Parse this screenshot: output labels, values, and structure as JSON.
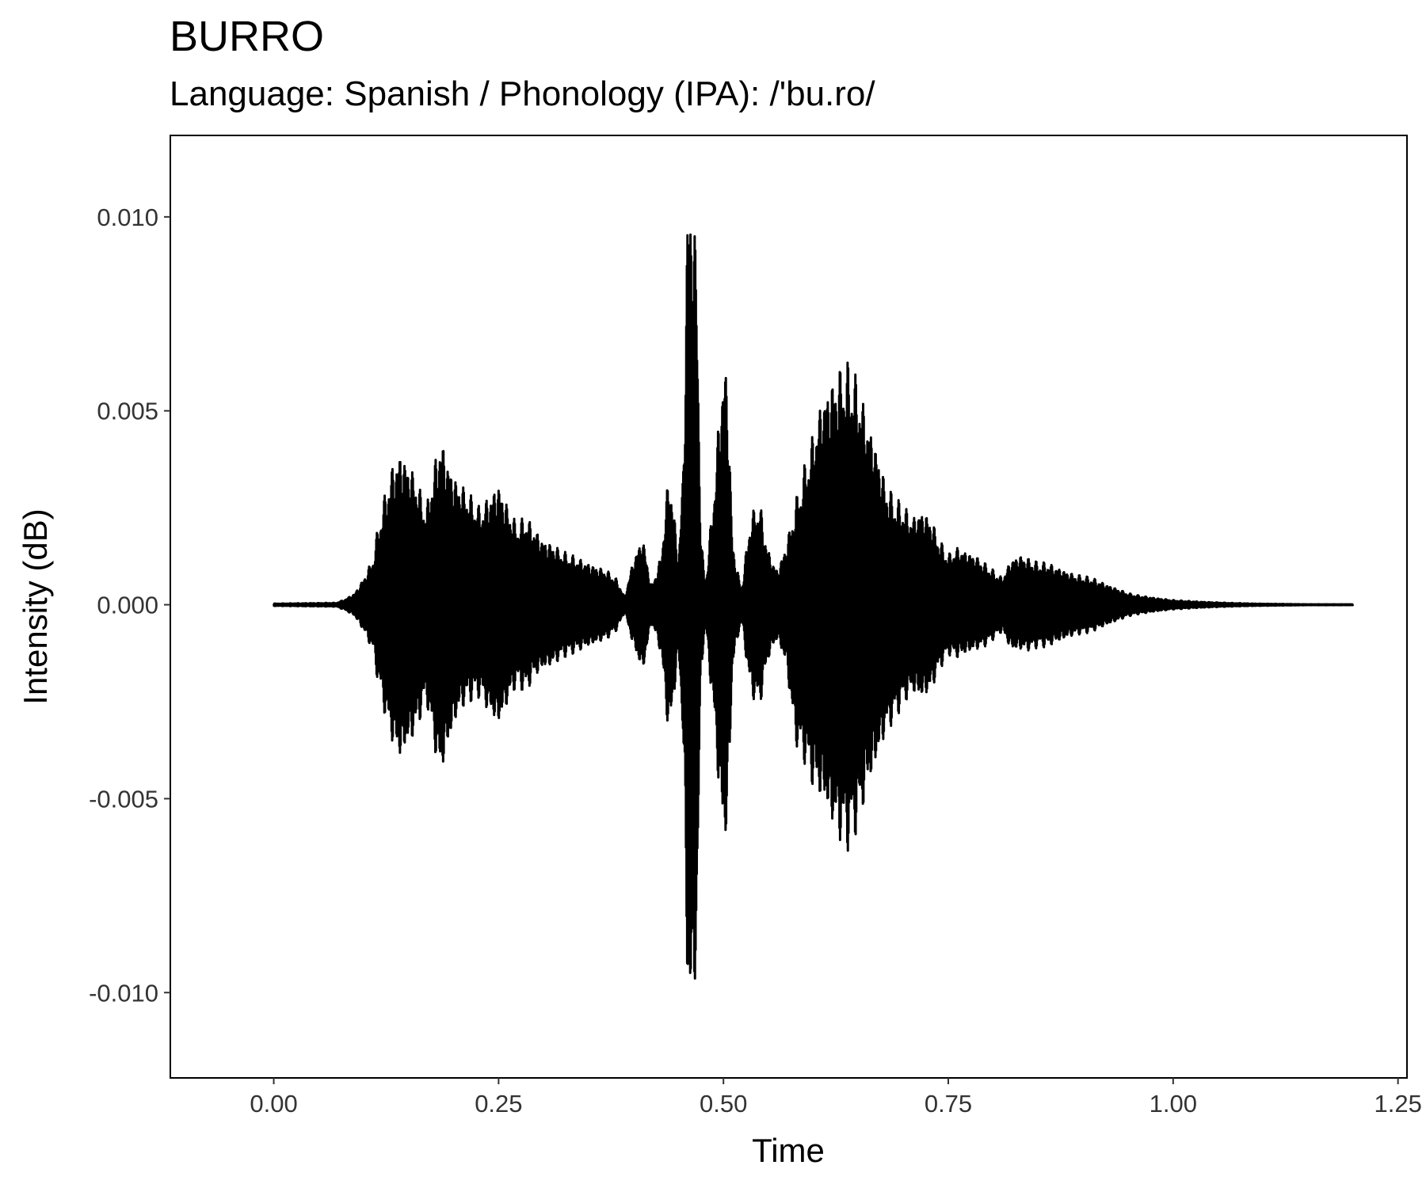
{
  "chart_data": {
    "type": "line",
    "title": "BURRO",
    "subtitle": "Language: Spanish / Phonology (IPA): /'bu.ro/",
    "xlabel": "Time",
    "ylabel": "Intensity (dB)",
    "xlim": [
      -0.115,
      1.26
    ],
    "ylim": [
      -0.0122,
      0.0121
    ],
    "x_ticks": [
      0.0,
      0.25,
      0.5,
      0.75,
      1.0,
      1.25
    ],
    "x_tick_labels": [
      "0.00",
      "0.25",
      "0.50",
      "0.75",
      "1.00",
      "1.25"
    ],
    "y_ticks": [
      0.01,
      0.005,
      0.0,
      -0.005,
      -0.01
    ],
    "y_tick_labels": [
      "0.010",
      "0.005",
      "0.000",
      "-0.005",
      "-0.010"
    ],
    "grid": false,
    "legend": "none",
    "line_color": "#000000",
    "series": [
      {
        "envelope": {
          "time": [
            0.0,
            0.07,
            0.08,
            0.09,
            0.1,
            0.11,
            0.115,
            0.12,
            0.125,
            0.13,
            0.135,
            0.14,
            0.145,
            0.15,
            0.155,
            0.16,
            0.165,
            0.17,
            0.175,
            0.18,
            0.185,
            0.19,
            0.195,
            0.2,
            0.21,
            0.22,
            0.23,
            0.24,
            0.25,
            0.26,
            0.27,
            0.28,
            0.29,
            0.3,
            0.31,
            0.32,
            0.33,
            0.34,
            0.35,
            0.36,
            0.37,
            0.38,
            0.385,
            0.39,
            0.4,
            0.41,
            0.42,
            0.43,
            0.44,
            0.45,
            0.455,
            0.46,
            0.465,
            0.47,
            0.475,
            0.48,
            0.49,
            0.5,
            0.505,
            0.51,
            0.52,
            0.53,
            0.54,
            0.55,
            0.56,
            0.57,
            0.58,
            0.59,
            0.6,
            0.61,
            0.62,
            0.63,
            0.64,
            0.65,
            0.66,
            0.67,
            0.68,
            0.69,
            0.7,
            0.71,
            0.72,
            0.73,
            0.74,
            0.75,
            0.76,
            0.77,
            0.78,
            0.79,
            0.8,
            0.81,
            0.82,
            0.83,
            0.84,
            0.85,
            0.86,
            0.87,
            0.88,
            0.89,
            0.9,
            0.91,
            0.92,
            0.93,
            0.94,
            0.95,
            0.96,
            0.98,
            1.0,
            1.03,
            1.06,
            1.09,
            1.12,
            1.15,
            1.2
          ],
          "upper": [
            3e-05,
            5e-05,
            0.00015,
            0.0003,
            0.0007,
            0.0012,
            0.0019,
            0.0025,
            0.003,
            0.0035,
            0.0038,
            0.004,
            0.0039,
            0.0037,
            0.0035,
            0.0032,
            0.0028,
            0.0025,
            0.0033,
            0.0038,
            0.0044,
            0.0041,
            0.0037,
            0.0034,
            0.0031,
            0.0028,
            0.0025,
            0.0029,
            0.0032,
            0.0026,
            0.0021,
            0.0023,
            0.002,
            0.0017,
            0.0016,
            0.0014,
            0.0013,
            0.0012,
            0.0011,
            0.001,
            0.0009,
            0.0007,
            0.0005,
            0.0002,
            0.0012,
            0.0018,
            0.0005,
            0.0012,
            0.0036,
            0.0012,
            0.0035,
            0.0105,
            0.011,
            0.0092,
            0.0018,
            0.0005,
            0.0032,
            0.0065,
            0.0058,
            0.0016,
            0.0004,
            0.0023,
            0.0027,
            0.0014,
            0.0009,
            0.0016,
            0.0027,
            0.0036,
            0.0045,
            0.0055,
            0.0059,
            0.0062,
            0.0063,
            0.0058,
            0.0049,
            0.0042,
            0.0032,
            0.0028,
            0.0026,
            0.0023,
            0.0025,
            0.0023,
            0.0017,
            0.0013,
            0.0015,
            0.0014,
            0.0013,
            0.0011,
            0.0009,
            0.0007,
            0.0012,
            0.0013,
            0.0012,
            0.0011,
            0.0011,
            0.001,
            0.0009,
            0.0008,
            0.00075,
            0.0007,
            0.0006,
            0.0005,
            0.0004,
            0.0003,
            0.00025,
            0.00018,
            0.00012,
            8e-05,
            5e-05,
            3e-05,
            2e-05,
            1e-05,
            1e-05
          ],
          "lower": [
            -3e-05,
            -5e-05,
            -0.00015,
            -0.0003,
            -0.0007,
            -0.0012,
            -0.0019,
            -0.0025,
            -0.003,
            -0.0035,
            -0.0038,
            -0.0041,
            -0.0039,
            -0.0037,
            -0.0035,
            -0.0032,
            -0.0028,
            -0.0025,
            -0.0033,
            -0.0039,
            -0.0045,
            -0.0041,
            -0.0037,
            -0.0032,
            -0.0027,
            -0.0025,
            -0.0024,
            -0.0029,
            -0.0032,
            -0.0026,
            -0.0021,
            -0.0023,
            -0.0019,
            -0.0017,
            -0.0016,
            -0.0014,
            -0.0013,
            -0.0012,
            -0.0011,
            -0.001,
            -0.0009,
            -0.0007,
            -0.0005,
            -0.0002,
            -0.0011,
            -0.0018,
            -0.0005,
            -0.0012,
            -0.0036,
            -0.0012,
            -0.0035,
            -0.0105,
            -0.011,
            -0.0095,
            -0.0018,
            -0.0005,
            -0.0032,
            -0.0064,
            -0.0058,
            -0.0016,
            -0.0004,
            -0.0023,
            -0.0027,
            -0.0014,
            -0.0009,
            -0.0016,
            -0.0036,
            -0.0041,
            -0.0048,
            -0.0052,
            -0.0058,
            -0.0062,
            -0.0064,
            -0.0058,
            -0.0049,
            -0.0042,
            -0.0034,
            -0.003,
            -0.0026,
            -0.0023,
            -0.0025,
            -0.0023,
            -0.0017,
            -0.0013,
            -0.0014,
            -0.0013,
            -0.0012,
            -0.0011,
            -0.0009,
            -0.0007,
            -0.0012,
            -0.0012,
            -0.0012,
            -0.0011,
            -0.0011,
            -0.001,
            -0.0009,
            -0.0008,
            -0.00075,
            -0.0007,
            -0.0006,
            -0.0005,
            -0.0004,
            -0.0003,
            -0.00025,
            -0.00018,
            -0.00012,
            -8e-05,
            -5e-05,
            -3e-05,
            -2e-05,
            -1e-05,
            -1e-05
          ]
        }
      }
    ]
  }
}
